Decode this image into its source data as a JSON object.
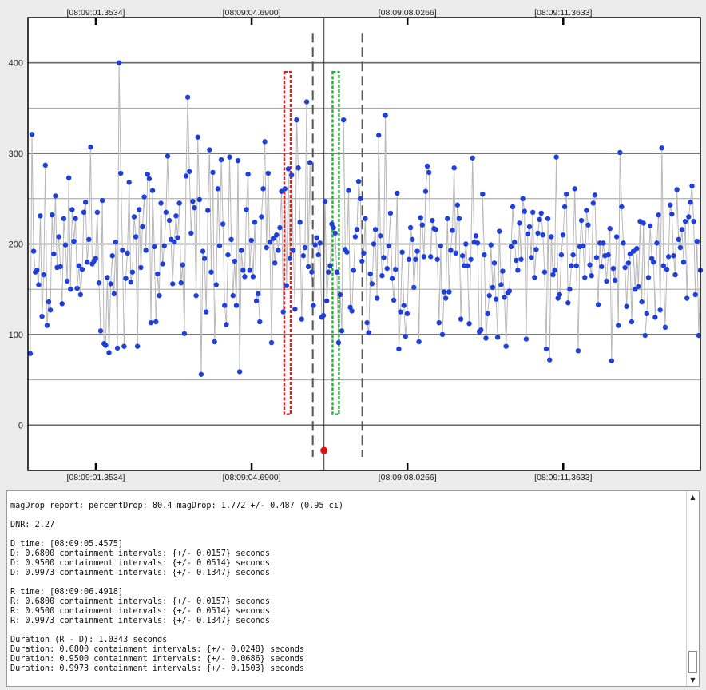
{
  "chart_data": {
    "type": "scatter",
    "x_tick_labels": [
      "[08:09:01.3534]",
      "[08:09:04.6900]",
      "[08:09:08.0266]",
      "[08:09:11.3633]"
    ],
    "x_ticks": [
      1.3534,
      4.69,
      8.0266,
      11.3633
    ],
    "xlim": [
      -0.1,
      14.3
    ],
    "y_ticks": [
      0,
      100,
      200,
      300,
      400
    ],
    "ylim": [
      -50,
      450
    ],
    "grid": true,
    "colors": {
      "points": "#1f3fd9",
      "line": "#b8b8b8",
      "d_marker": "#e02020",
      "r_marker": "#20b030",
      "bad_point": "#e01010",
      "grid_major": "#666666",
      "grid_minor": "#a0a0a0"
    },
    "d_time": 5.4575,
    "r_time": 6.4918,
    "center_line": 6.24,
    "d_bracket": 6.0,
    "r_bracket": 7.06,
    "marker_height": 390,
    "bad_point": {
      "x": 6.24,
      "y": -28
    },
    "y_values": [
      79,
      321,
      192,
      169,
      171,
      155,
      231,
      120,
      166,
      287,
      110,
      136,
      127,
      232,
      189,
      253,
      174,
      208,
      175,
      134,
      228,
      199,
      159,
      273,
      150,
      238,
      203,
      228,
      151,
      176,
      144,
      172,
      235,
      246,
      180,
      205,
      307,
      178,
      181,
      184,
      235,
      157,
      104,
      248,
      90,
      88,
      163,
      80,
      156,
      187,
      145,
      202,
      85,
      400,
      278,
      193,
      87,
      162,
      190,
      268,
      158,
      169,
      230,
      208,
      87,
      238,
      174,
      219,
      252,
      193,
      277,
      272,
      113,
      259,
      197,
      114,
      167,
      143,
      245,
      178,
      198,
      235,
      297,
      226,
      205,
      156,
      202,
      231,
      207,
      245,
      157,
      177,
      101,
      275,
      362,
      280,
      212,
      247,
      240,
      143,
      318,
      249,
      56,
      192,
      184,
      125,
      237,
      304,
      169,
      279,
      92,
      155,
      261,
      198,
      293,
      222,
      132,
      111,
      188,
      296,
      205,
      143,
      181,
      132,
      292,
      59,
      193,
      171,
      164,
      238,
      277,
      171,
      204,
      164,
      224,
      137,
      145,
      114,
      230,
      261,
      313,
      196,
      278,
      202,
      91,
      206,
      179,
      210,
      193,
      218,
      258,
      125,
      261,
      154,
      283,
      184,
      276,
      193,
      128,
      337,
      284,
      224,
      117,
      187,
      196,
      357,
      175,
      290,
      169,
      132,
      199,
      207,
      188,
      201,
      119,
      121,
      247,
      137,
      169,
      176,
      222,
      218,
      212,
      169,
      91,
      144,
      104,
      337,
      194,
      191,
      259,
      130,
      126,
      171,
      208,
      216,
      269,
      250,
      181,
      190,
      228,
      113,
      102,
      167,
      156,
      200,
      216,
      140,
      320,
      209,
      165,
      185,
      342,
      173,
      198,
      234,
      162,
      138,
      172,
      256,
      84,
      125,
      191,
      132,
      98,
      123,
      183,
      218,
      205,
      152,
      183,
      192,
      92,
      229,
      221,
      186,
      258,
      286,
      279,
      186,
      226,
      217,
      216,
      183,
      113,
      198,
      100,
      147,
      140,
      228,
      147,
      193,
      215,
      284,
      190,
      243,
      228,
      117,
      187,
      176,
      200,
      176,
      112,
      183,
      295,
      202,
      209,
      201,
      103,
      105,
      255,
      188,
      96,
      123,
      143,
      199,
      152,
      179,
      139,
      97,
      214,
      155,
      170,
      141,
      87,
      146,
      148,
      197,
      241,
      202,
      182,
      171,
      223,
      183,
      250,
      236,
      95,
      211,
      219,
      185,
      235,
      163,
      194,
      212,
      227,
      234,
      210,
      169,
      84,
      228,
      72,
      208,
      166,
      171,
      296,
      140,
      144,
      188,
      210,
      241,
      255,
      135,
      150,
      176,
      188,
      261,
      176,
      82,
      197,
      226,
      198,
      163,
      237,
      221,
      177,
      165,
      245,
      254,
      185,
      133,
      201,
      175,
      201,
      187,
      159,
      188,
      217,
      71,
      173,
      160,
      208,
      110,
      301,
      241,
      201,
      174,
      131,
      179,
      189,
      114,
      192,
      150,
      195,
      153,
      225,
      136,
      223,
      99,
      123,
      163,
      220,
      184,
      180,
      119,
      201,
      232,
      127,
      306,
      176,
      108,
      172,
      186,
      243,
      233,
      187,
      166,
      260,
      205,
      196,
      216,
      180,
      225,
      140,
      230,
      246,
      264,
      225,
      144,
      203,
      99,
      171
    ]
  },
  "report": {
    "lines": [
      "magDrop report: percentDrop: 80.4 magDrop: 1.772 +/- 0.487 (0.95 ci)",
      "",
      "DNR: 2.27",
      "",
      "D time: [08:09:05.4575]",
      "D: 0.6800 containment intervals: {+/- 0.0157} seconds",
      "D: 0.9500 containment intervals: {+/- 0.0514} seconds",
      "D: 0.9973 containment intervals: {+/- 0.1347} seconds",
      "",
      "R time: [08:09:06.4918]",
      "R: 0.6800 containment intervals: {+/- 0.0157} seconds",
      "R: 0.9500 containment intervals: {+/- 0.0514} seconds",
      "R: 0.9973 containment intervals: {+/- 0.1347} seconds",
      "",
      "Duration (R - D): 1.0343 seconds",
      "Duration: 0.6800 containment intervals: {+/- 0.0248} seconds",
      "Duration: 0.9500 containment intervals: {+/- 0.0686} seconds",
      "Duration: 0.9973 containment intervals: {+/- 0.1503} seconds"
    ]
  },
  "scrollbar": {
    "up_icon": "▲",
    "down_icon": "▼"
  }
}
